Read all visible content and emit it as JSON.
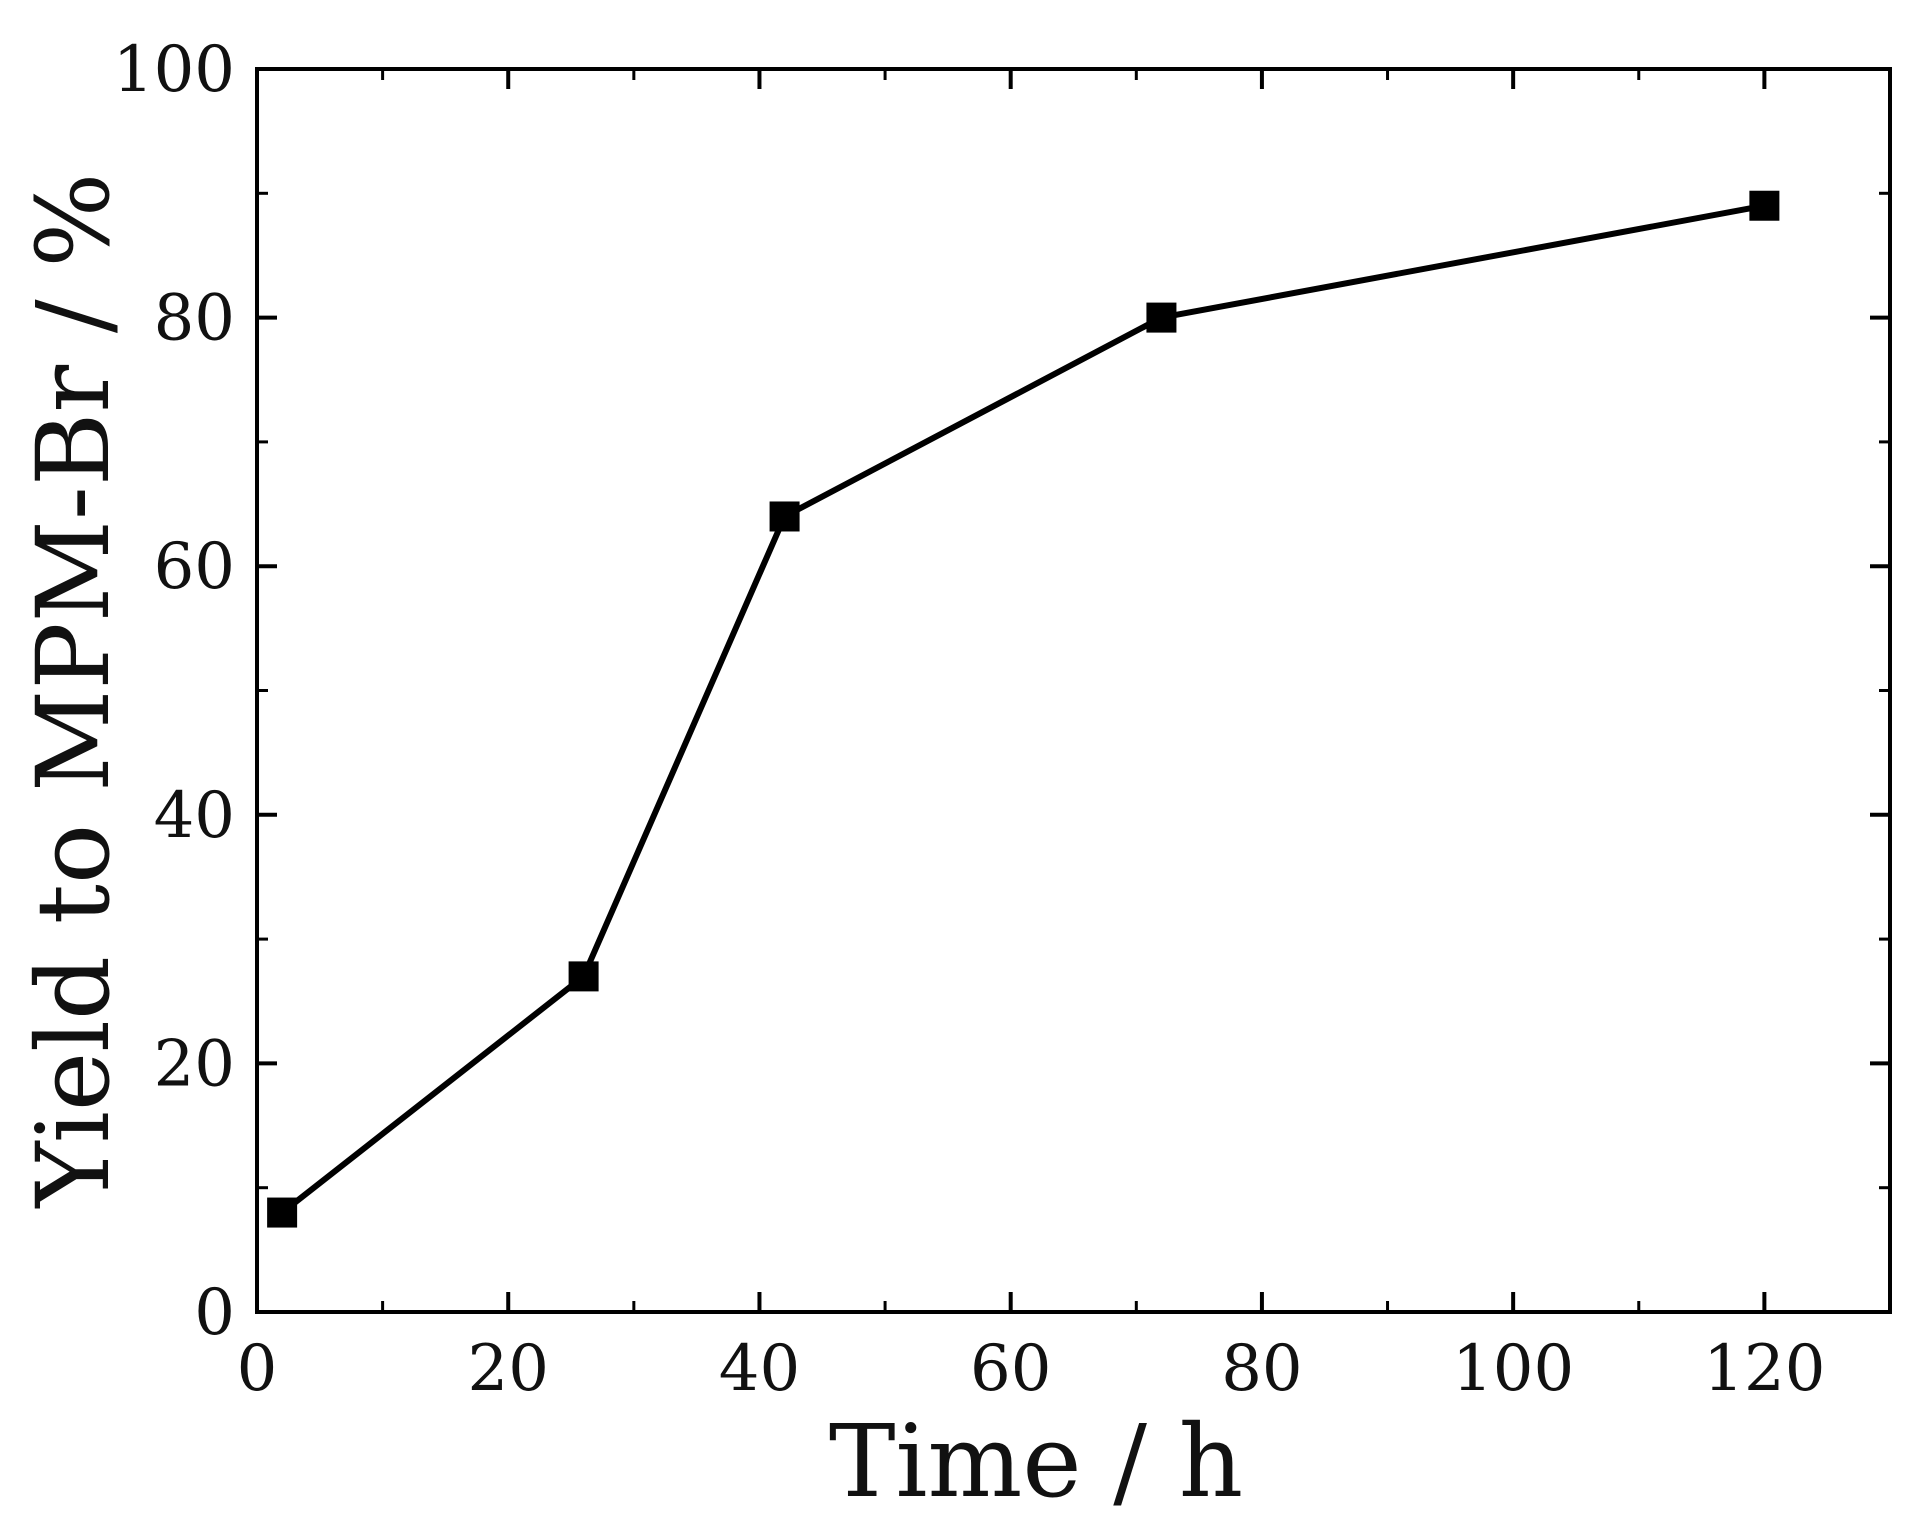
{
  "chart_data": {
    "type": "line",
    "xlabel": "Time / h",
    "ylabel": "Yield to MPM-Br / %",
    "xlim": [
      0,
      130
    ],
    "ylim": [
      0,
      100
    ],
    "x_ticks": [
      0,
      20,
      40,
      60,
      80,
      100,
      120
    ],
    "y_ticks": [
      0,
      20,
      40,
      60,
      80,
      100
    ],
    "x_minor_step": 10,
    "y_minor_step": 10,
    "grid": false,
    "marker": "square",
    "series": [
      {
        "x": [
          2,
          26,
          42,
          72,
          120
        ],
        "y": [
          8,
          27,
          64,
          80,
          89
        ]
      }
    ],
    "colors": {
      "line": "#000000",
      "marker": "#000000",
      "axis": "#000000"
    }
  }
}
